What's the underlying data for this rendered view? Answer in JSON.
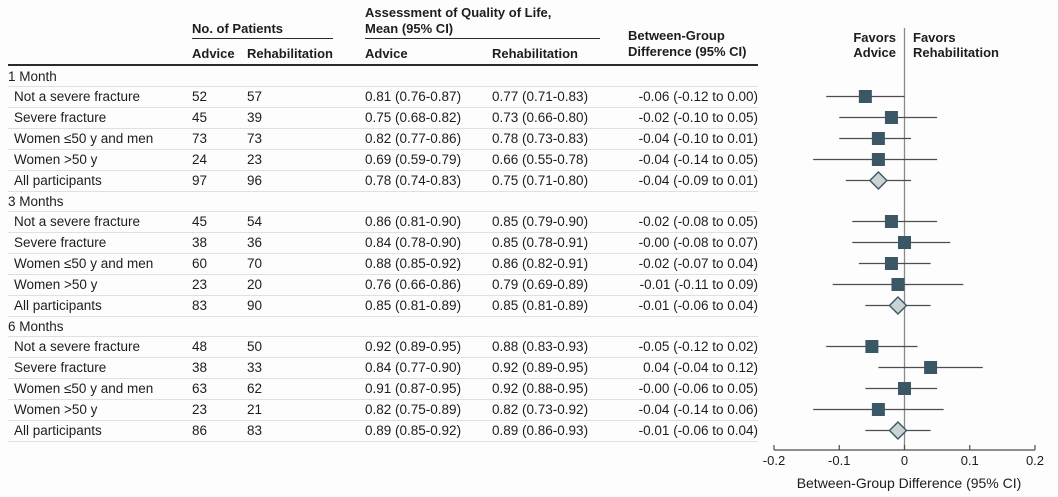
{
  "table": {
    "col_headers": {
      "patients_group": "No. of Patients",
      "qol_line1": "Assessment of Quality of Life,",
      "qol_line2": "Mean (95% CI)",
      "diff_line1": "Between-Group",
      "diff_line2": "Difference (95% CI)",
      "advice": "Advice",
      "rehabilitation": "Rehabilitation"
    },
    "groups": [
      {
        "label": "1 Month",
        "rows": [
          {
            "label": "Not a severe fracture",
            "n_advice": "52",
            "n_rehab": "57",
            "qol_advice": "0.81 (0.76-0.87)",
            "qol_rehab": "0.77 (0.71-0.83)",
            "diff": "-0.06 (-0.12 to 0.00)"
          },
          {
            "label": "Severe fracture",
            "n_advice": "45",
            "n_rehab": "39",
            "qol_advice": "0.75 (0.68-0.82)",
            "qol_rehab": "0.73 (0.66-0.80)",
            "diff": "-0.02 (-0.10 to 0.05)"
          },
          {
            "label": "Women ≤50 y and men",
            "n_advice": "73",
            "n_rehab": "73",
            "qol_advice": "0.82 (0.77-0.86)",
            "qol_rehab": "0.78 (0.73-0.83)",
            "diff": "-0.04 (-0.10 to 0.01)"
          },
          {
            "label": "Women >50 y",
            "n_advice": "24",
            "n_rehab": "23",
            "qol_advice": "0.69 (0.59-0.79)",
            "qol_rehab": "0.66 (0.55-0.78)",
            "diff": "-0.04 (-0.14 to 0.05)"
          },
          {
            "label": "All participants",
            "n_advice": "97",
            "n_rehab": "96",
            "qol_advice": "0.78 (0.74-0.83)",
            "qol_rehab": "0.75 (0.71-0.80)",
            "diff": "-0.04 (-0.09 to 0.01)"
          }
        ]
      },
      {
        "label": "3 Months",
        "rows": [
          {
            "label": "Not a severe fracture",
            "n_advice": "45",
            "n_rehab": "54",
            "qol_advice": "0.86 (0.81-0.90)",
            "qol_rehab": "0.85 (0.79-0.90)",
            "diff": "-0.02 (-0.08 to 0.05)"
          },
          {
            "label": "Severe fracture",
            "n_advice": "38",
            "n_rehab": "36",
            "qol_advice": "0.84 (0.78-0.90)",
            "qol_rehab": "0.85 (0.78-0.91)",
            "diff": "-0.00 (-0.08 to 0.07)"
          },
          {
            "label": "Women ≤50 y and men",
            "n_advice": "60",
            "n_rehab": "70",
            "qol_advice": "0.88 (0.85-0.92)",
            "qol_rehab": "0.86 (0.82-0.91)",
            "diff": "-0.02 (-0.07 to 0.04)"
          },
          {
            "label": "Women >50 y",
            "n_advice": "23",
            "n_rehab": "20",
            "qol_advice": "0.76 (0.66-0.86)",
            "qol_rehab": "0.79 (0.69-0.89)",
            "diff": "-0.01 (-0.11 to 0.09)"
          },
          {
            "label": "All participants",
            "n_advice": "83",
            "n_rehab": "90",
            "qol_advice": "0.85 (0.81-0.89)",
            "qol_rehab": "0.85 (0.81-0.89)",
            "diff": "-0.01 (-0.06 to 0.04)"
          }
        ]
      },
      {
        "label": "6 Months",
        "rows": [
          {
            "label": "Not a severe fracture",
            "n_advice": "48",
            "n_rehab": "50",
            "qol_advice": "0.92 (0.89-0.95)",
            "qol_rehab": "0.88 (0.83-0.93)",
            "diff": "-0.05 (-0.12 to 0.02)"
          },
          {
            "label": "Severe fracture",
            "n_advice": "38",
            "n_rehab": "33",
            "qol_advice": "0.84 (0.77-0.90)",
            "qol_rehab": "0.92 (0.89-0.95)",
            "diff": "0.04 (-0.04 to 0.12)"
          },
          {
            "label": "Women ≤50 y and men",
            "n_advice": "63",
            "n_rehab": "62",
            "qol_advice": "0.91 (0.87-0.95)",
            "qol_rehab": "0.92 (0.88-0.95)",
            "diff": "-0.00 (-0.06 to 0.05)"
          },
          {
            "label": "Women >50 y",
            "n_advice": "23",
            "n_rehab": "21",
            "qol_advice": "0.82 (0.75-0.89)",
            "qol_rehab": "0.82 (0.73-0.92)",
            "diff": "-0.04 (-0.14 to 0.06)"
          },
          {
            "label": "All participants",
            "n_advice": "86",
            "n_rehab": "83",
            "qol_advice": "0.89 (0.85-0.92)",
            "qol_rehab": "0.89 (0.86-0.93)",
            "diff": "-0.01 (-0.06 to 0.04)"
          }
        ]
      }
    ]
  },
  "forest_header": {
    "favors_left_line1": "Favors",
    "favors_left_line2": "Advice",
    "favors_right_line1": "Favors",
    "favors_right_line2": "Rehabilitation"
  },
  "chart_data": {
    "type": "scatter",
    "subtype": "forest-plot",
    "xlabel": "Between-Group Difference (95% CI)",
    "xlim": [
      -0.2,
      0.2
    ],
    "xticks": [
      -0.2,
      -0.1,
      0,
      0.1,
      0.2
    ],
    "xtick_labels": [
      "-0.2",
      "-0.1",
      "0",
      "0.1",
      "0.2"
    ],
    "zero_line": 0,
    "grid": false,
    "groups": [
      {
        "label": "1 Month",
        "points": [
          {
            "label": "Not a severe fracture",
            "est": -0.06,
            "lo": -0.12,
            "hi": 0.0,
            "marker": "square"
          },
          {
            "label": "Severe fracture",
            "est": -0.02,
            "lo": -0.1,
            "hi": 0.05,
            "marker": "square"
          },
          {
            "label": "Women ≤50 y and men",
            "est": -0.04,
            "lo": -0.1,
            "hi": 0.01,
            "marker": "square"
          },
          {
            "label": "Women >50 y",
            "est": -0.04,
            "lo": -0.14,
            "hi": 0.05,
            "marker": "square"
          },
          {
            "label": "All participants",
            "est": -0.04,
            "lo": -0.09,
            "hi": 0.01,
            "marker": "diamond"
          }
        ]
      },
      {
        "label": "3 Months",
        "points": [
          {
            "label": "Not a severe fracture",
            "est": -0.02,
            "lo": -0.08,
            "hi": 0.05,
            "marker": "square"
          },
          {
            "label": "Severe fracture",
            "est": 0,
            "lo": -0.08,
            "hi": 0.07,
            "marker": "square"
          },
          {
            "label": "Women ≤50 y and men",
            "est": -0.02,
            "lo": -0.07,
            "hi": 0.04,
            "marker": "square"
          },
          {
            "label": "Women >50 y",
            "est": -0.01,
            "lo": -0.11,
            "hi": 0.09,
            "marker": "square"
          },
          {
            "label": "All participants",
            "est": -0.01,
            "lo": -0.06,
            "hi": 0.04,
            "marker": "diamond"
          }
        ]
      },
      {
        "label": "6 Months",
        "points": [
          {
            "label": "Not a severe fracture",
            "est": -0.05,
            "lo": -0.12,
            "hi": 0.02,
            "marker": "square"
          },
          {
            "label": "Severe fracture",
            "est": 0.04,
            "lo": -0.04,
            "hi": 0.12,
            "marker": "square"
          },
          {
            "label": "Women ≤50 y and men",
            "est": 0,
            "lo": -0.06,
            "hi": 0.05,
            "marker": "square"
          },
          {
            "label": "Women >50 y",
            "est": -0.04,
            "lo": -0.14,
            "hi": 0.06,
            "marker": "square"
          },
          {
            "label": "All participants",
            "est": -0.01,
            "lo": -0.06,
            "hi": 0.04,
            "marker": "diamond"
          }
        ]
      }
    ],
    "colors": {
      "square": "#3b5765",
      "diamond_fill": "#c9d4d2",
      "diamond_stroke": "#3b5765",
      "ci_line": "#4d4d4d",
      "zero_line": "#8a8a8a",
      "axis": "#4d4d4d",
      "text": "#1d1d1d",
      "row_separator": "#e0e0e0",
      "header_rule": "#2b2b2b"
    }
  }
}
